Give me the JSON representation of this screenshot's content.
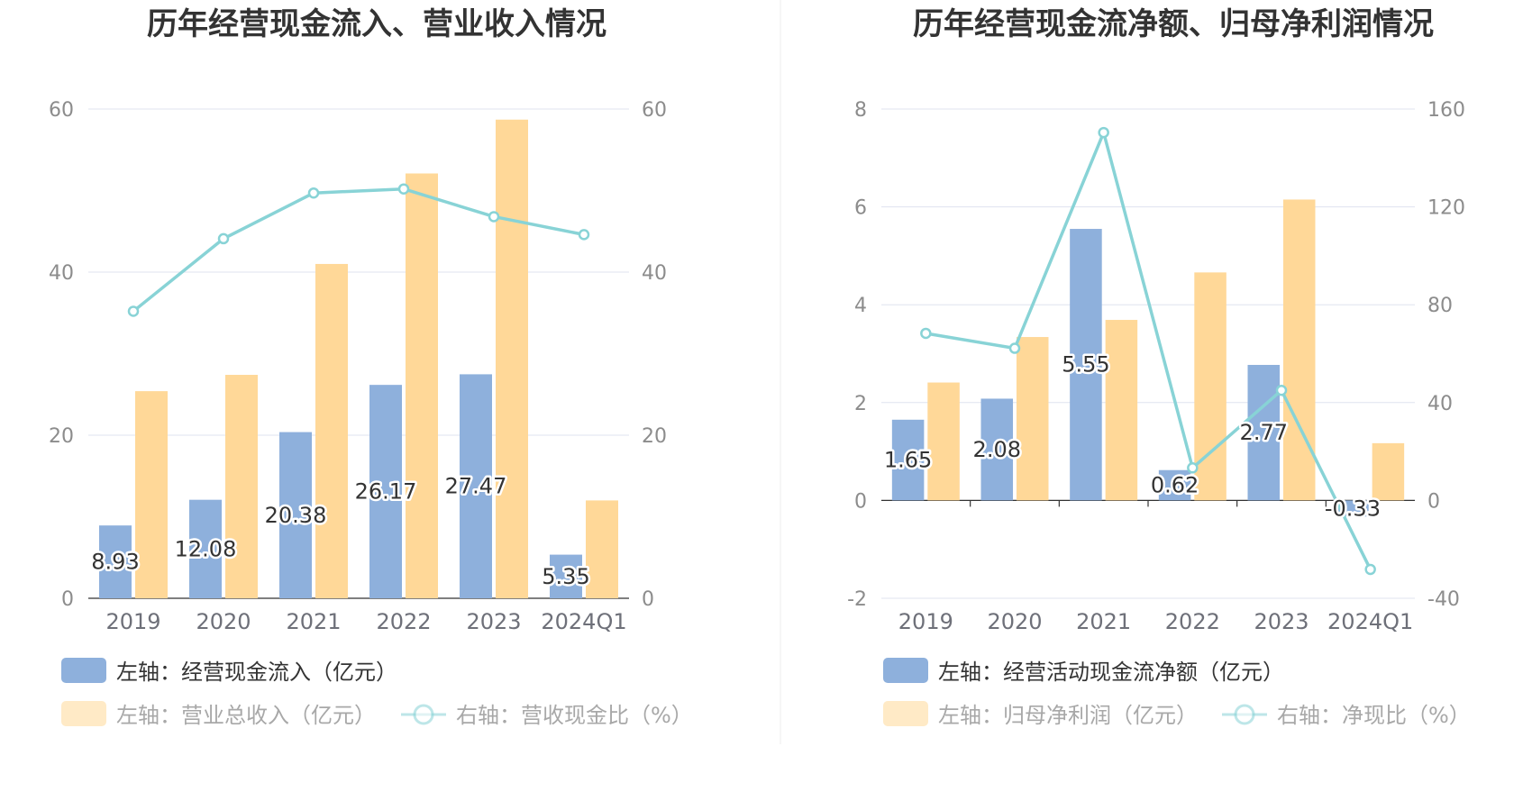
{
  "colors": {
    "bar_primary": "#8eb0dc",
    "bar_secondary": "#ffd898",
    "line": "#88d3d6",
    "grid": "#dfe3ef",
    "axis": "#6e7079",
    "divider": "#eeeeee"
  },
  "chart_data": [
    {
      "type": "bar",
      "title": "历年经营现金流入、营业收入情况",
      "categories": [
        "2019",
        "2020",
        "2021",
        "2022",
        "2023",
        "2024Q1"
      ],
      "left_axis": {
        "ylim": [
          0,
          60
        ],
        "ticks": [
          "0",
          "20",
          "40",
          "60"
        ]
      },
      "right_axis": {
        "ylim": [
          0,
          60
        ],
        "ticks": [
          "0",
          "20",
          "40",
          "60"
        ]
      },
      "series": [
        {
          "name": "左轴：经营现金流入（亿元）",
          "type": "bar",
          "axis": "left",
          "values": [
            8.93,
            12.08,
            20.38,
            26.17,
            27.47,
            5.35
          ],
          "labels": [
            "8.93",
            "12.08",
            "20.38",
            "26.17",
            "27.47",
            "5.35"
          ]
        },
        {
          "name": "左轴：营业总收入（亿元）",
          "type": "bar",
          "axis": "left",
          "values": [
            25.4,
            27.4,
            41.0,
            52.1,
            58.7,
            12.0
          ]
        },
        {
          "name": "右轴：营收现金比（%）",
          "type": "line",
          "axis": "right",
          "values": [
            35.2,
            44.1,
            49.7,
            50.2,
            46.8,
            44.6
          ]
        }
      ],
      "legend_position": "bottom-left",
      "grid": true
    },
    {
      "type": "bar",
      "title": "历年经营现金流净额、归母净利润情况",
      "categories": [
        "2019",
        "2020",
        "2021",
        "2022",
        "2023",
        "2024Q1"
      ],
      "left_axis": {
        "ylim": [
          -2,
          8
        ],
        "ticks": [
          "-2",
          "0",
          "2",
          "4",
          "6",
          "8"
        ]
      },
      "right_axis": {
        "ylim": [
          -40,
          160
        ],
        "ticks": [
          "-40",
          "0",
          "40",
          "80",
          "120",
          "160"
        ]
      },
      "series": [
        {
          "name": "左轴：经营活动现金流净额（亿元）",
          "type": "bar",
          "axis": "left",
          "values": [
            1.65,
            2.08,
            5.55,
            0.62,
            2.77,
            -0.33
          ],
          "labels": [
            "1.65",
            "2.08",
            "5.55",
            "0.62",
            "2.77",
            "-0.33"
          ]
        },
        {
          "name": "左轴：归母净利润（亿元）",
          "type": "bar",
          "axis": "left",
          "values": [
            2.41,
            3.34,
            3.69,
            4.66,
            6.15,
            1.17
          ]
        },
        {
          "name": "右轴：净现比（%）",
          "type": "line",
          "axis": "right",
          "values": [
            68.3,
            62.2,
            150.4,
            13.3,
            45.0,
            -28.2
          ]
        }
      ],
      "legend_position": "bottom-left",
      "grid": true
    }
  ]
}
